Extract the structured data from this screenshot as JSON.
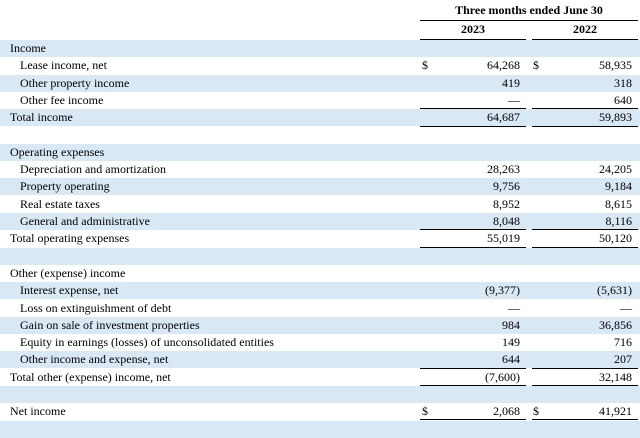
{
  "header": {
    "period_label": "Three months ended June 30",
    "year_1": "2023",
    "year_2": "2022"
  },
  "rows": [
    {
      "label": "Income",
      "indent": 0,
      "v1": "",
      "v2": "",
      "shaded": true
    },
    {
      "label": "Lease income, net",
      "indent": 1,
      "c1": "$",
      "v1": "64,268",
      "c2": "$",
      "v2": "58,935",
      "shaded": false
    },
    {
      "label": "Other property income",
      "indent": 1,
      "v1": "419",
      "v2": "318",
      "shaded": true
    },
    {
      "label": "Other fee income",
      "indent": 1,
      "v1": "—",
      "v2": "640",
      "shaded": false,
      "rule_below": true
    },
    {
      "label": "Total income",
      "indent": 0,
      "v1": "64,687",
      "v2": "59,893",
      "shaded": true,
      "rule_below": true
    },
    {
      "label": "",
      "indent": 0,
      "v1": "",
      "v2": "",
      "shaded": false
    },
    {
      "label": "Operating expenses",
      "indent": 0,
      "v1": "",
      "v2": "",
      "shaded": true
    },
    {
      "label": "Depreciation and amortization",
      "indent": 1,
      "v1": "28,263",
      "v2": "24,205",
      "shaded": false
    },
    {
      "label": "Property operating",
      "indent": 1,
      "v1": "9,756",
      "v2": "9,184",
      "shaded": true
    },
    {
      "label": "Real estate taxes",
      "indent": 1,
      "v1": "8,952",
      "v2": "8,615",
      "shaded": false
    },
    {
      "label": "General and administrative",
      "indent": 1,
      "v1": "8,048",
      "v2": "8,116",
      "shaded": true,
      "rule_below": true
    },
    {
      "label": "Total operating expenses",
      "indent": 0,
      "v1": "55,019",
      "v2": "50,120",
      "shaded": false,
      "rule_below": true
    },
    {
      "label": "",
      "indent": 0,
      "v1": "",
      "v2": "",
      "shaded": true
    },
    {
      "label": "Other (expense) income",
      "indent": 0,
      "v1": "",
      "v2": "",
      "shaded": false
    },
    {
      "label": "Interest expense, net",
      "indent": 1,
      "v1": "(9,377)",
      "v2": "(5,631)",
      "shaded": true
    },
    {
      "label": "Loss on extinguishment of debt",
      "indent": 1,
      "v1": "—",
      "v2": "—",
      "shaded": false
    },
    {
      "label": "Gain on sale of investment properties",
      "indent": 1,
      "v1": "984",
      "v2": "36,856",
      "shaded": true
    },
    {
      "label": "Equity in earnings (losses) of unconsolidated entities",
      "indent": 1,
      "v1": "149",
      "v2": "716",
      "shaded": false
    },
    {
      "label": "Other income and expense, net",
      "indent": 1,
      "v1": "644",
      "v2": "207",
      "shaded": true,
      "rule_below": true
    },
    {
      "label": "Total other (expense) income, net",
      "indent": 0,
      "v1": "(7,600)",
      "v2": "32,148",
      "shaded": false,
      "rule_below": true
    },
    {
      "label": "",
      "indent": 0,
      "v1": "",
      "v2": "",
      "shaded": true
    },
    {
      "label": "Net income",
      "indent": 0,
      "c1": "$",
      "v1": "2,068",
      "c2": "$",
      "v2": "41,921",
      "shaded": false,
      "double_below": true
    },
    {
      "label": "",
      "indent": 0,
      "v1": "",
      "v2": "",
      "shaded": true
    }
  ]
}
